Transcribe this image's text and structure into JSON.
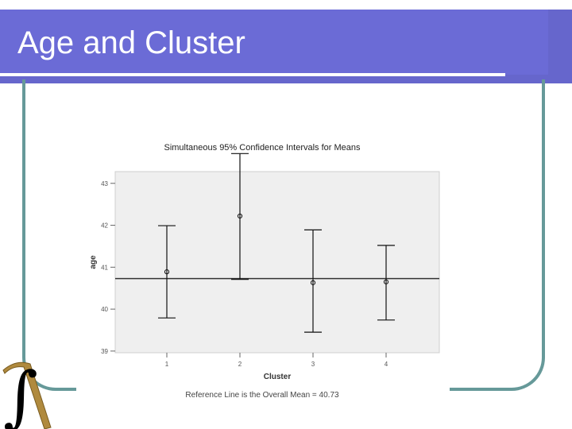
{
  "slide": {
    "title": "Age and Cluster",
    "accent_color": "#6666cc",
    "frame_color": "#669999",
    "logo_icon": "integral-pickaxe-logo"
  },
  "chart_data": {
    "type": "scatter",
    "title": "Simultaneous 95% Confidence Intervals for Means",
    "xlabel": "Cluster",
    "ylabel": "age",
    "categories": [
      "1",
      "2",
      "3",
      "4"
    ],
    "y_ticks": [
      "39",
      "40",
      "41",
      "42",
      "43"
    ],
    "ylim": [
      38.96,
      43.28
    ],
    "grid": false,
    "plot_background": "#efefef",
    "series": [
      {
        "means": [
          40.89,
          42.22,
          40.63,
          40.65
        ],
        "lower": [
          39.79,
          40.71,
          39.45,
          39.74
        ],
        "upper": [
          41.99,
          43.71,
          41.89,
          41.52
        ]
      }
    ],
    "reference_line": {
      "value": 40.73
    },
    "footnote": "Reference Line is the Overall Mean = 40.73"
  }
}
